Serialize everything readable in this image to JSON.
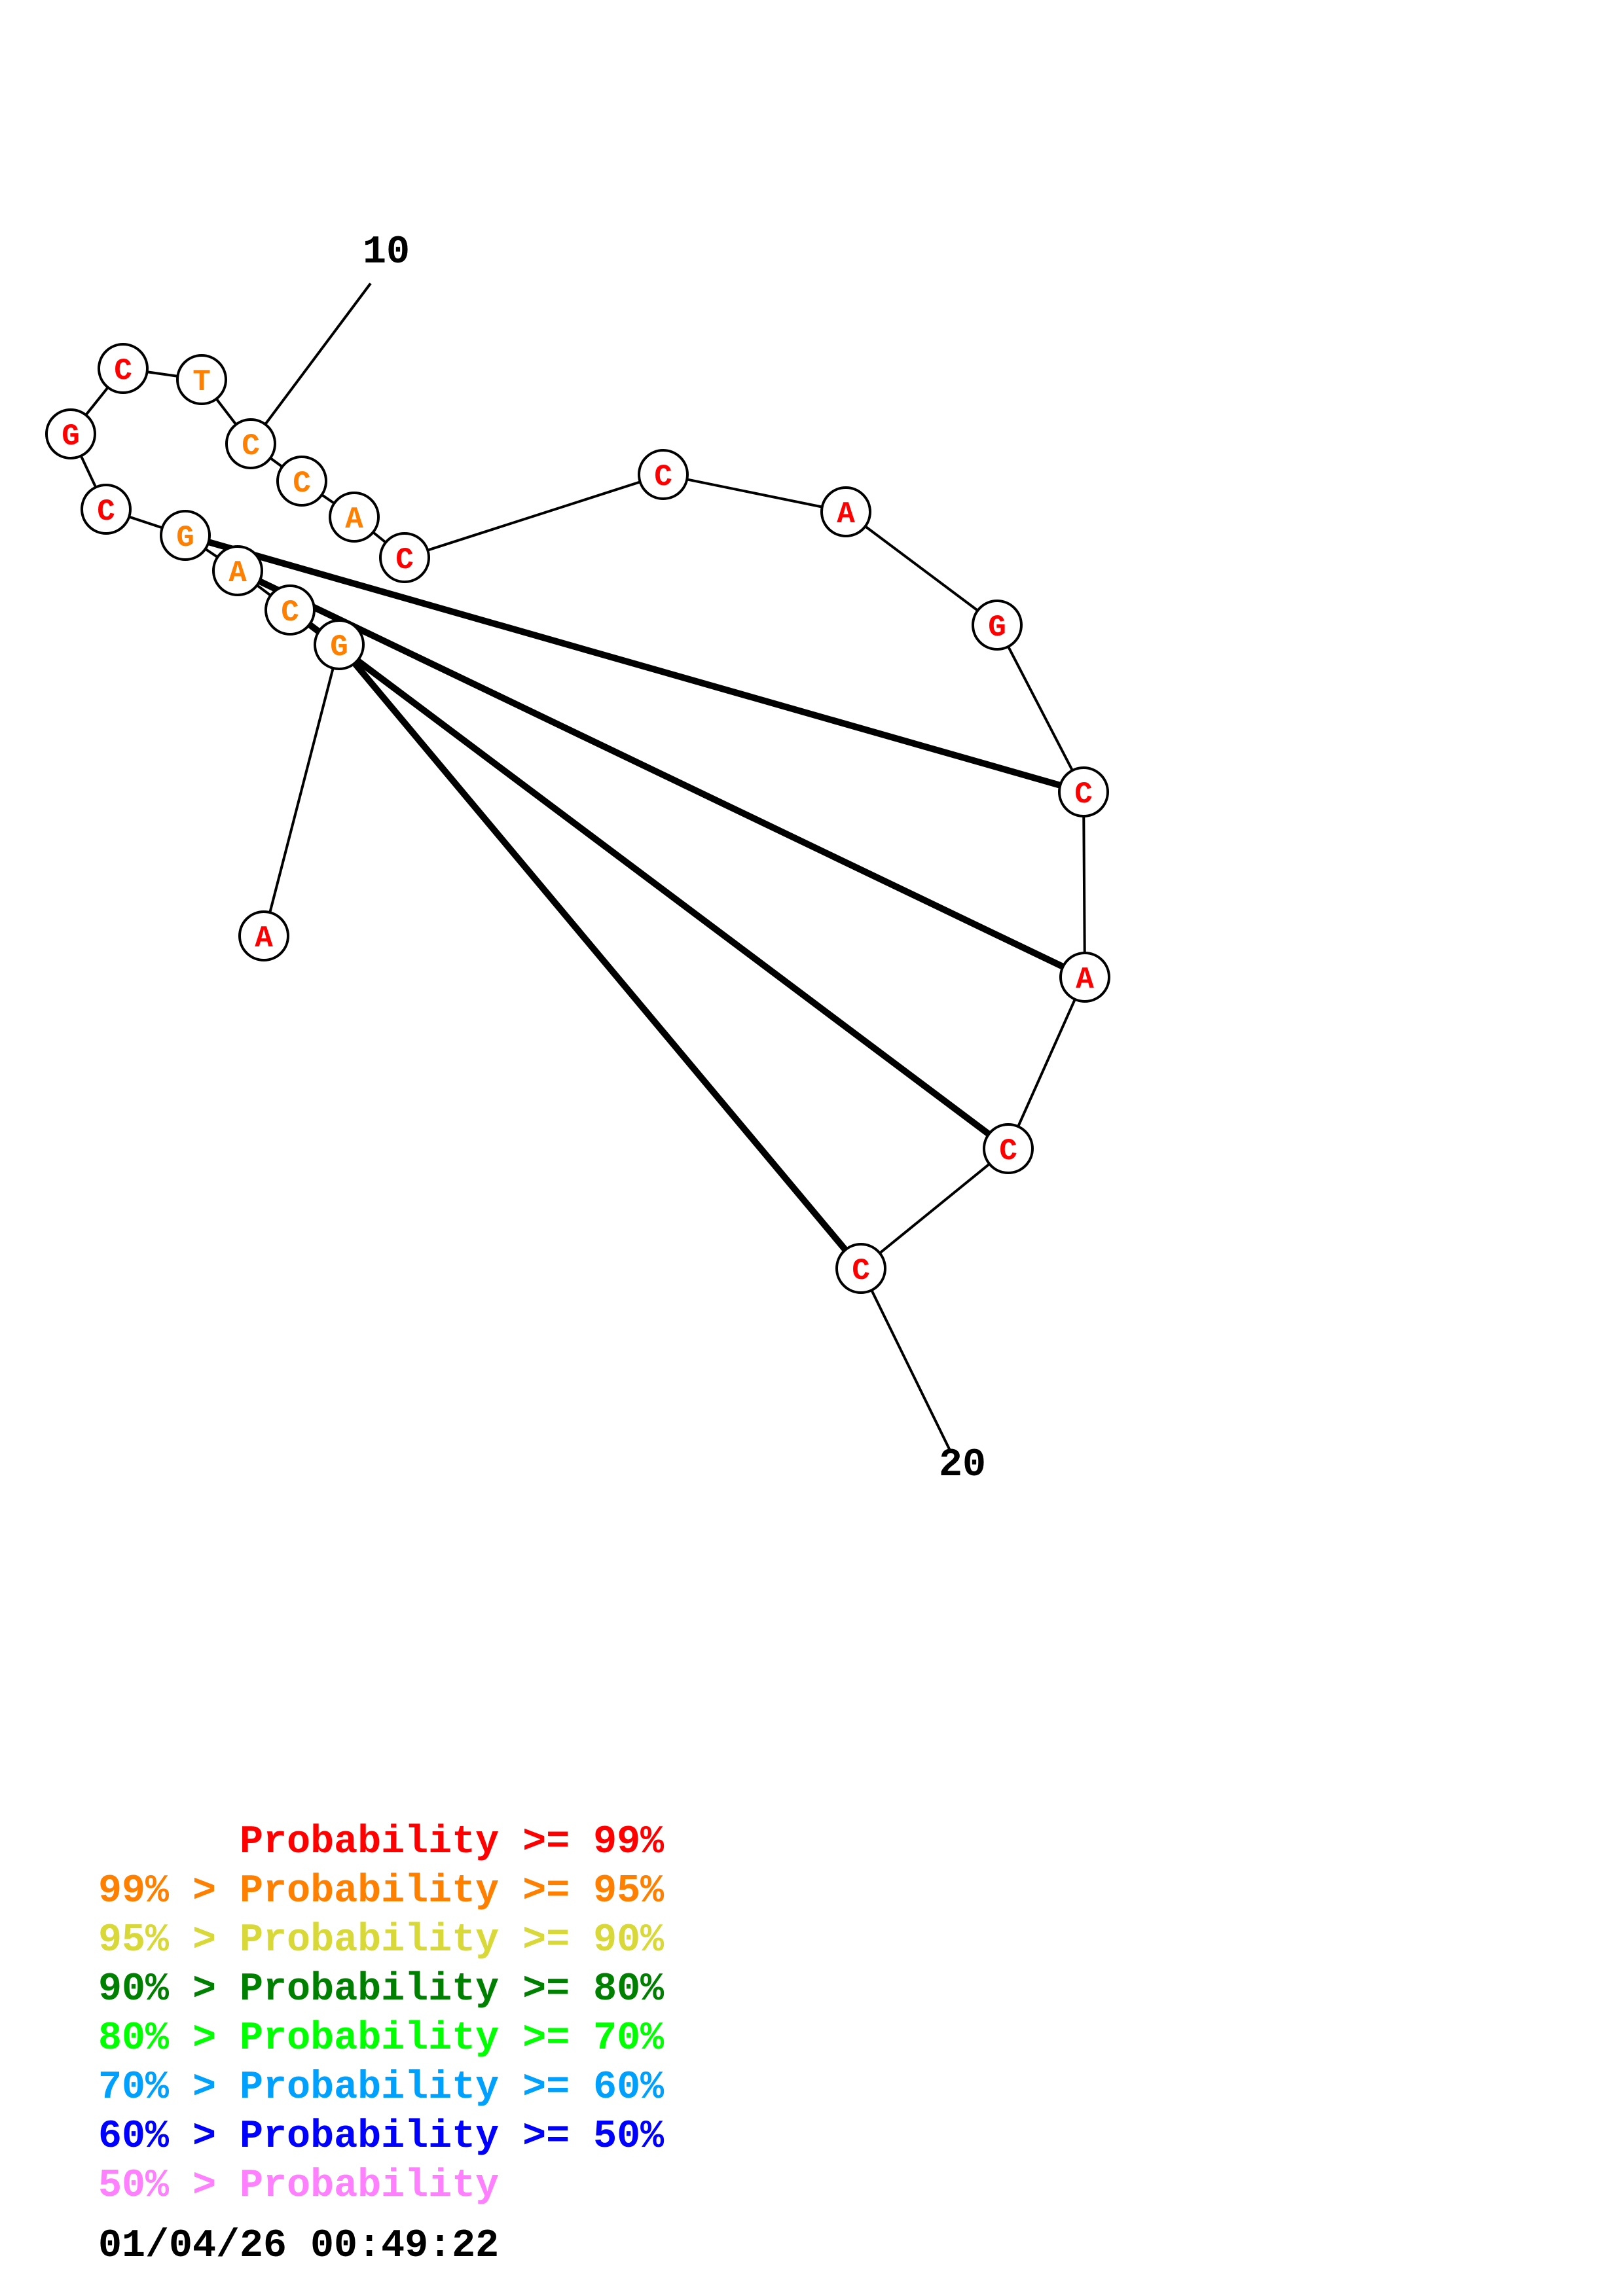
{
  "colors": {
    "p99": "#ff0000",
    "p95": "#ff8000",
    "p90": "#d8d838",
    "p80": "#008000",
    "p70": "#00ff00",
    "p60": "#00a0ff",
    "p50": "#0000ff",
    "plow": "#ff80ff"
  },
  "structure": {
    "sequence": [
      "A",
      "G",
      "C",
      "A",
      "G",
      "C",
      "G",
      "C",
      "T",
      "C",
      "C",
      "A",
      "C",
      "C",
      "A",
      "G",
      "C",
      "A",
      "C",
      "C"
    ],
    "nucleotide_colors": [
      "p99",
      "p95",
      "p95",
      "p95",
      "p95",
      "p99",
      "p99",
      "p99",
      "p95",
      "p95",
      "p95",
      "p95",
      "p99",
      "p99",
      "p99",
      "p99",
      "p99",
      "p99",
      "p99",
      "p99"
    ],
    "pairs": [
      [
        2,
        20
      ],
      [
        3,
        19
      ],
      [
        4,
        18
      ],
      [
        5,
        17
      ]
    ],
    "position_labels": [
      {
        "index": 10,
        "text": "10"
      },
      {
        "index": 20,
        "text": "20"
      }
    ]
  },
  "legend": [
    {
      "left": "",
      "right": "Probability >= 99%",
      "color": "p99"
    },
    {
      "left": "99% > ",
      "right": "Probability >= 95%",
      "color": "p95"
    },
    {
      "left": "95% > ",
      "right": "Probability >= 90%",
      "color": "p90"
    },
    {
      "left": "90% > ",
      "right": "Probability >= 80%",
      "color": "p80"
    },
    {
      "left": "80% > ",
      "right": "Probability >= 70%",
      "color": "p70"
    },
    {
      "left": "70% > ",
      "right": "Probability >= 60%",
      "color": "p60"
    },
    {
      "left": "60% > ",
      "right": "Probability >= 50%",
      "color": "p50"
    },
    {
      "left": "50% > ",
      "right": "Probability",
      "color": "plow"
    }
  ],
  "timestamp": "01/04/26 00:49:22"
}
